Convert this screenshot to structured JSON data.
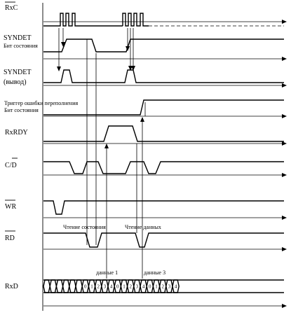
{
  "signals": [
    {
      "id": "rxc",
      "label": "RxC",
      "overline": true
    },
    {
      "id": "syndet-status",
      "label": "SYNDET",
      "sublabel": "Бит состояния",
      "overline": false
    },
    {
      "id": "syndet-pin",
      "label": "SYNDET",
      "sublabel": "(вывод)",
      "overline": false
    },
    {
      "id": "overrun",
      "label": "Триггер ошибки переполнения",
      "sublabel": "Бит состояния",
      "overline": false
    },
    {
      "id": "rxrdy",
      "label": "RxRDY",
      "overline": false
    },
    {
      "id": "cd",
      "label": "C/D",
      "overline": true
    },
    {
      "id": "wr",
      "label": "WR",
      "overline": true
    },
    {
      "id": "rd",
      "label": "RD",
      "overline": true
    },
    {
      "id": "rxd",
      "label": "RxD",
      "overline": false
    }
  ],
  "annotations": {
    "status_read": "Чтение состояния",
    "data_read": "Чтение данных",
    "data1": "данные 1",
    "data3": "данные 3"
  },
  "rxd_bits": [
    "0",
    "1",
    "2",
    "3",
    "4",
    "0",
    "1",
    "2",
    "3",
    "4",
    "0",
    "1",
    "2",
    "3",
    "4"
  ]
}
